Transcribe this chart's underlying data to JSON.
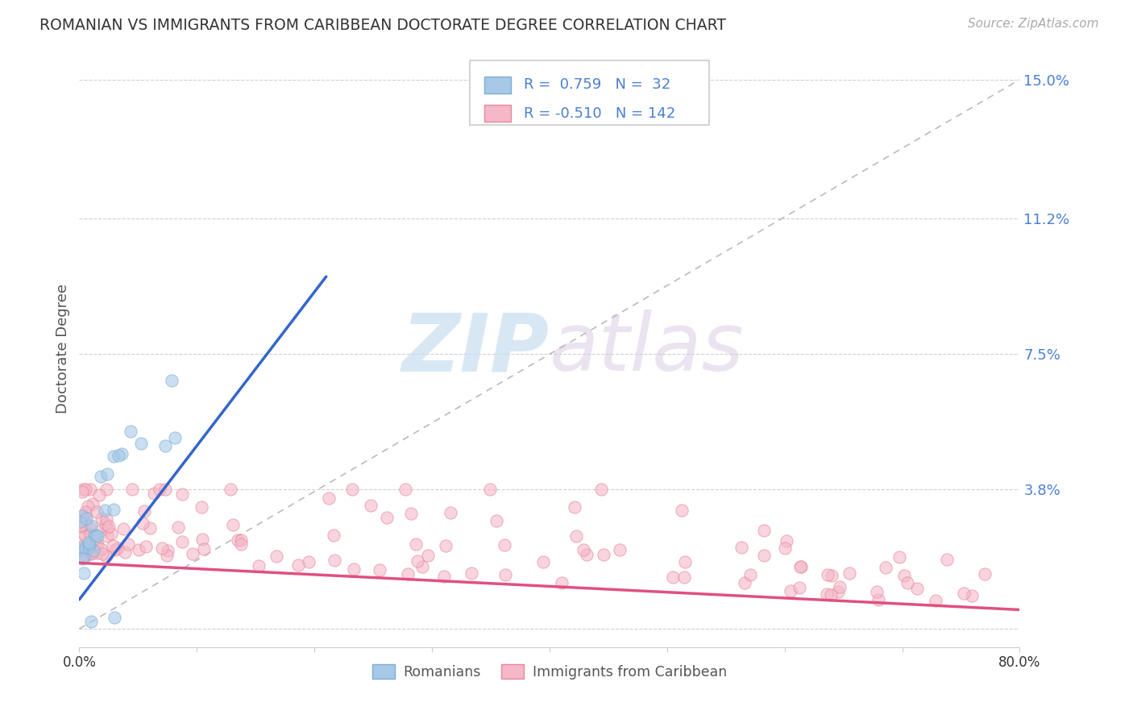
{
  "title": "ROMANIAN VS IMMIGRANTS FROM CARIBBEAN DOCTORATE DEGREE CORRELATION CHART",
  "source": "Source: ZipAtlas.com",
  "ylabel_label": "Doctorate Degree",
  "yticks": [
    0.0,
    0.038,
    0.075,
    0.112,
    0.15
  ],
  "ytick_labels": [
    "",
    "3.8%",
    "7.5%",
    "11.2%",
    "15.0%"
  ],
  "xticks": [
    0.0,
    0.1,
    0.2,
    0.3,
    0.4,
    0.5,
    0.6,
    0.7,
    0.8
  ],
  "xtick_labels": [
    "0.0%",
    "",
    "",
    "",
    "",
    "",
    "",
    "",
    "80.0%"
  ],
  "xlim": [
    0.0,
    0.8
  ],
  "ylim": [
    -0.005,
    0.158
  ],
  "blue_color": "#a8c8e8",
  "blue_edge_color": "#7aafd4",
  "pink_color": "#f4b8c8",
  "pink_edge_color": "#e8879a",
  "blue_line_color": "#3366cc",
  "pink_line_color": "#e05080",
  "diagonal_color": "#bbbbbb",
  "watermark_zip": "ZIP",
  "watermark_atlas": "atlas",
  "background_color": "#ffffff",
  "legend_blue_text": "R =  0.759   N =  32",
  "legend_pink_text": "R = -0.510   N = 142",
  "R_blue": 0.759,
  "N_blue": 32,
  "R_pink": -0.51,
  "N_pink": 142,
  "dot_size": 120,
  "dot_alpha": 0.6
}
